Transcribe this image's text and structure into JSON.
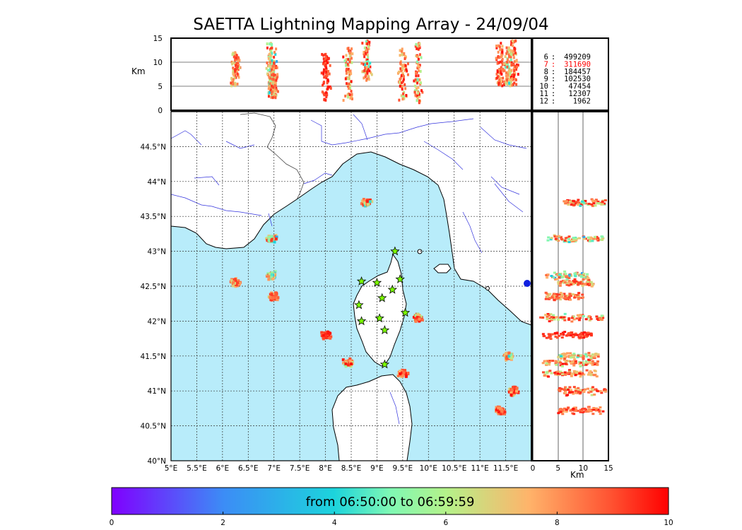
{
  "title": "SAETTA Lightning Mapping Array - 24/09/04",
  "colorbar": {
    "label": "from 06:50:00 to 06:59:59",
    "ticks": [
      "0",
      "2",
      "4",
      "6",
      "8",
      "10"
    ],
    "range": [
      0,
      10
    ]
  },
  "stations": [
    {
      "n": "6",
      "count": "499209",
      "color": "#000000"
    },
    {
      "n": "7",
      "count": "311690",
      "color": "#ff0000"
    },
    {
      "n": "8",
      "count": "184457",
      "color": "#000000"
    },
    {
      "n": "9",
      "count": "102530",
      "color": "#000000"
    },
    {
      "n": "10",
      "count": "47454",
      "color": "#000000"
    },
    {
      "n": "11",
      "count": "12307",
      "color": "#000000"
    },
    {
      "n": "12",
      "count": "1962",
      "color": "#000000"
    }
  ],
  "axes": {
    "lon_ticks": [
      "5°E",
      "5.5°E",
      "6°E",
      "6.5°E",
      "7°E",
      "7.5°E",
      "8°E",
      "8.5°E",
      "9°E",
      "9.5°E",
      "10°E",
      "10.5°E",
      "11°E",
      "11.5°E"
    ],
    "lat_ticks": [
      "40°N",
      "40.5°N",
      "41°N",
      "41.5°N",
      "42°N",
      "42.5°N",
      "43°N",
      "43.5°N",
      "44°N",
      "44.5°N"
    ],
    "alt_ticks": [
      "0",
      "5",
      "10",
      "15"
    ],
    "alt_label": "Km"
  },
  "chart_data": {
    "type": "scatter",
    "title": "SAETTA Lightning Mapping Array - 24/09/04",
    "x_range": [
      5,
      12
    ],
    "y_range": [
      40,
      45
    ],
    "alt_range": [
      0,
      15
    ],
    "color_scale": "rainbow",
    "grid": true,
    "clusters": [
      {
        "lon": 8.8,
        "lat": 43.7,
        "alt_min": 6,
        "alt_max": 14.5,
        "t_min": 4,
        "t_max": 9.8
      },
      {
        "lon": 6.95,
        "lat": 43.18,
        "alt_min": 3,
        "alt_max": 14,
        "t_min": 2,
        "t_max": 9.5
      },
      {
        "lon": 6.25,
        "lat": 42.55,
        "alt_min": 5,
        "alt_max": 12,
        "t_min": 6,
        "t_max": 9.5
      },
      {
        "lon": 6.95,
        "lat": 42.65,
        "alt_min": 2.5,
        "alt_max": 11,
        "t_min": 2,
        "t_max": 9.5
      },
      {
        "lon": 7.0,
        "lat": 42.35,
        "alt_min": 2.5,
        "alt_max": 10,
        "t_min": 6,
        "t_max": 9.5
      },
      {
        "lon": 8.0,
        "lat": 41.8,
        "alt_min": 2,
        "alt_max": 12,
        "t_min": 8.5,
        "t_max": 9.9
      },
      {
        "lon": 8.45,
        "lat": 41.4,
        "alt_min": 2,
        "alt_max": 13,
        "t_min": 5,
        "t_max": 9.9
      },
      {
        "lon": 9.8,
        "lat": 42.05,
        "alt_min": 1.5,
        "alt_max": 14,
        "t_min": 4.5,
        "t_max": 9.9
      },
      {
        "lon": 9.5,
        "lat": 41.25,
        "alt_min": 2,
        "alt_max": 13,
        "t_min": 5,
        "t_max": 9.9
      },
      {
        "lon": 11.65,
        "lat": 41.0,
        "alt_min": 5,
        "alt_max": 14.5,
        "t_min": 6,
        "t_max": 9.9
      },
      {
        "lon": 11.4,
        "lat": 40.72,
        "alt_min": 5,
        "alt_max": 14,
        "t_min": 7,
        "t_max": 9.9
      },
      {
        "lon": 11.55,
        "lat": 41.5,
        "alt_min": 5,
        "alt_max": 13,
        "t_min": 4,
        "t_max": 9
      }
    ],
    "stations_lonlat": [
      [
        9.35,
        43.0
      ],
      [
        8.7,
        42.57
      ],
      [
        9.0,
        42.55
      ],
      [
        9.45,
        42.6
      ],
      [
        9.3,
        42.45
      ],
      [
        9.1,
        42.33
      ],
      [
        8.65,
        42.23
      ],
      [
        9.55,
        42.12
      ],
      [
        9.05,
        42.04
      ],
      [
        8.7,
        42.0
      ],
      [
        9.15,
        41.87
      ],
      [
        9.15,
        41.38
      ]
    ]
  }
}
